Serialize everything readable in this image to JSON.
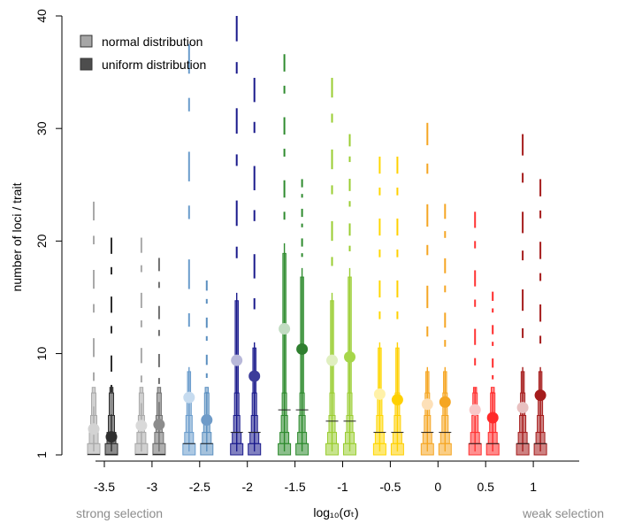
{
  "chart_data": {
    "type": "violin-boxplot",
    "title": "",
    "xlabel": "log₁₀(σₜ)",
    "ylabel": "number of loci / trait",
    "xlim": [
      -3.85,
      1.15
    ],
    "ylim": [
      1,
      40
    ],
    "x_ticks": [
      "-3.5",
      "-3",
      "-2.5",
      "-2",
      "-1.5",
      "-1",
      "-0.5",
      "0",
      "0.5",
      "1"
    ],
    "y_ticks": [
      "1",
      "10",
      "20",
      "30",
      "40"
    ],
    "grid": false,
    "legend_position": "top-left",
    "legend": [
      {
        "label": "normal distribution",
        "color": "#a6a6a6"
      },
      {
        "label": "uniform distribution",
        "color": "#4d4d4d"
      }
    ],
    "notes": {
      "left": "strong selection",
      "right": "weak selection"
    },
    "groups": [
      {
        "x": -3.5,
        "normal": {
          "color": "#a9a9a9",
          "dot_color": "#d3d3d3",
          "mean": 3.3,
          "max": 23.5,
          "median": 1,
          "q3": 1.8
        },
        "uniform": {
          "color": "#2f2f2f",
          "dot_color": "#2f2f2f",
          "mean": 2.6,
          "max": 20.3,
          "median": 1,
          "q3": 1.8
        }
      },
      {
        "x": -3,
        "normal": {
          "color": "#a9a9a9",
          "dot_color": "#d9d9d9",
          "mean": 3.6,
          "max": 20.3,
          "median": 1,
          "q3": 2
        },
        "uniform": {
          "color": "#6e6e6e",
          "dot_color": "#8c8c8c",
          "mean": 3.7,
          "max": 18.5,
          "median": 1,
          "q3": 2
        }
      },
      {
        "x": -2.5,
        "normal": {
          "color": "#6a9ccc",
          "dot_color": "#c6dbef",
          "mean": 6.1,
          "max": 37.5,
          "median": 2,
          "q3": 4
        },
        "uniform": {
          "color": "#5b8fc0",
          "dot_color": "#6f9bc8",
          "mean": 4.1,
          "max": 16.5,
          "median": 2,
          "q3": 3
        }
      },
      {
        "x": -2,
        "normal": {
          "color": "#1a1a8c",
          "dot_color": "#b8b8d9",
          "mean": 9.4,
          "max": 40,
          "median": 3,
          "q3": 7
        },
        "uniform": {
          "color": "#1a1a8c",
          "dot_color": "#3c3c9a",
          "mean": 8.0,
          "max": 34.5,
          "median": 3,
          "q3": 5
        }
      },
      {
        "x": -1.5,
        "normal": {
          "color": "#2e8b2e",
          "dot_color": "#c2dcc2",
          "mean": 12.2,
          "max": 36.6,
          "median": 5,
          "q3": 9
        },
        "uniform": {
          "color": "#2e8b2e",
          "dot_color": "#2f7f2f",
          "mean": 10.4,
          "max": 25.5,
          "median": 5,
          "q3": 8
        }
      },
      {
        "x": -1,
        "normal": {
          "color": "#9acd32",
          "dot_color": "#e0efc0",
          "mean": 9.4,
          "max": 34.5,
          "median": 4,
          "q3": 7
        },
        "uniform": {
          "color": "#9acd32",
          "dot_color": "#a6d64a",
          "mean": 9.7,
          "max": 29.5,
          "median": 4,
          "q3": 8
        }
      },
      {
        "x": -0.5,
        "normal": {
          "color": "#ffd700",
          "dot_color": "#fff1a8",
          "mean": 6.4,
          "max": 27.5,
          "median": 3,
          "q3": 5
        },
        "uniform": {
          "color": "#ffd000",
          "dot_color": "#ffd000",
          "mean": 5.9,
          "max": 27.5,
          "median": 3,
          "q3": 5
        }
      },
      {
        "x": 0,
        "normal": {
          "color": "#f5a623",
          "dot_color": "#fde0b8",
          "mean": 5.5,
          "max": 30.5,
          "median": 3,
          "q3": 4
        },
        "uniform": {
          "color": "#f5a623",
          "dot_color": "#f5a623",
          "mean": 5.7,
          "max": 23.3,
          "median": 3,
          "q3": 4
        }
      },
      {
        "x": 0.5,
        "normal": {
          "color": "#ff3333",
          "dot_color": "#f8c8c8",
          "mean": 5.0,
          "max": 22.6,
          "median": 2,
          "q3": 3
        },
        "uniform": {
          "color": "#ff2a2a",
          "dot_color": "#ff2a2a",
          "mean": 4.3,
          "max": 15.5,
          "median": 2,
          "q3": 3
        }
      },
      {
        "x": 1,
        "normal": {
          "color": "#a51c1c",
          "dot_color": "#e8c0c0",
          "mean": 5.2,
          "max": 29.5,
          "median": 2,
          "q3": 4
        },
        "uniform": {
          "color": "#a51c1c",
          "dot_color": "#a51c1c",
          "mean": 6.3,
          "max": 25.5,
          "median": 2,
          "q3": 4
        }
      }
    ]
  }
}
